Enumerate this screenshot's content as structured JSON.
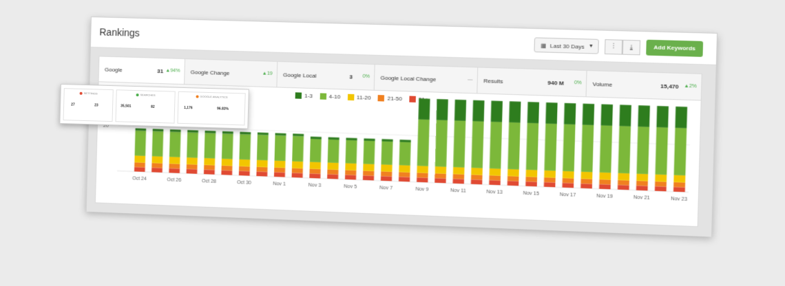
{
  "header": {
    "title": "Rankings",
    "date_range": "Last 30 Days",
    "filter_icon": "sliders-icon",
    "download_icon": "download-icon",
    "add_button": "Add Keywords"
  },
  "tabs": [
    {
      "label": "Google",
      "value": "31",
      "change": "▲94%"
    },
    {
      "label": "Google Change",
      "value": "",
      "change": "▲19"
    },
    {
      "label": "Google Local",
      "value": "3",
      "change": "0%"
    },
    {
      "label": "Google Local Change",
      "value": "",
      "change": "—"
    },
    {
      "label": "Results",
      "value": "940 M",
      "change": "0%"
    },
    {
      "label": "Volume",
      "value": "15,470",
      "change": "▲2%"
    }
  ],
  "legend": [
    {
      "label": "1-3",
      "color": "#2e7d1e"
    },
    {
      "label": "4-10",
      "color": "#7cb83a"
    },
    {
      "label": "11-20",
      "color": "#f2c500"
    },
    {
      "label": "21-50",
      "color": "#f08020"
    },
    {
      "label": "51+",
      "color": "#e04a33"
    }
  ],
  "mini_cards": [
    {
      "header": "SETTINGS",
      "dot": "#e04a33",
      "v1": "27",
      "v2": "23"
    },
    {
      "header": "SEARCHES",
      "dot": "#4cae4c",
      "v1": "35,501",
      "v2": "82"
    },
    {
      "header": "GOOGLE ANALYTICS",
      "dot": "#f08020",
      "v1": "1,176",
      "v2": "96.83%"
    }
  ],
  "chart_data": {
    "type": "bar",
    "stacked": true,
    "y_tick_label": "20",
    "x_tick_labels": [
      "Oct 24",
      "Oct 26",
      "Oct 28",
      "Oct 30",
      "Nov 1",
      "Nov 3",
      "Nov 5",
      "Nov 7",
      "Nov 9",
      "Nov 11",
      "Nov 13",
      "Nov 15",
      "Nov 17",
      "Nov 19",
      "Nov 21",
      "Nov 23"
    ],
    "categories": [
      "Oct 24",
      "Oct 25",
      "Oct 26",
      "Oct 27",
      "Oct 28",
      "Oct 29",
      "Oct 30",
      "Oct 31",
      "Nov 1",
      "Nov 2",
      "Nov 3",
      "Nov 4",
      "Nov 5",
      "Nov 6",
      "Nov 7",
      "Nov 8",
      "Nov 9",
      "Nov 10",
      "Nov 11",
      "Nov 12",
      "Nov 13",
      "Nov 14",
      "Nov 15",
      "Nov 16",
      "Nov 17",
      "Nov 18",
      "Nov 19",
      "Nov 20",
      "Nov 21",
      "Nov 22",
      "Nov 23"
    ],
    "series": [
      {
        "name": "1-3",
        "values": [
          1,
          1,
          1,
          1,
          1,
          1,
          1,
          1,
          1,
          1,
          1,
          1,
          1,
          1,
          1,
          1,
          9,
          9,
          9,
          9,
          9,
          9,
          9,
          9,
          9,
          9,
          9,
          9,
          9,
          9,
          9
        ]
      },
      {
        "name": "4-10",
        "values": [
          11,
          11,
          11,
          11,
          11,
          11,
          11,
          11,
          11,
          11,
          10,
          10,
          10,
          10,
          10,
          10,
          20,
          20,
          20,
          20,
          20,
          20,
          20,
          20,
          20,
          20,
          20,
          20,
          20,
          20,
          20
        ]
      },
      {
        "name": "11-20",
        "values": [
          3,
          3,
          3,
          3,
          3,
          3,
          3,
          3,
          3,
          3,
          3,
          3,
          3,
          3,
          3,
          3,
          3,
          3,
          3,
          3,
          3,
          3,
          3,
          3,
          3,
          3,
          3,
          3,
          3,
          3,
          3
        ]
      },
      {
        "name": "21-50",
        "values": [
          2,
          2,
          2,
          2,
          2,
          2,
          2,
          2,
          2,
          2,
          2,
          2,
          2,
          2,
          2,
          2,
          2,
          2,
          2,
          2,
          2,
          2,
          2,
          2,
          2,
          2,
          2,
          2,
          2,
          2,
          2
        ]
      },
      {
        "name": "51+",
        "values": [
          2,
          2,
          2,
          2,
          2,
          2,
          2,
          2,
          2,
          2,
          2,
          2,
          2,
          2,
          2,
          2,
          2,
          2,
          2,
          2,
          2,
          2,
          2,
          2,
          2,
          2,
          2,
          2,
          2,
          2,
          2
        ]
      }
    ]
  }
}
